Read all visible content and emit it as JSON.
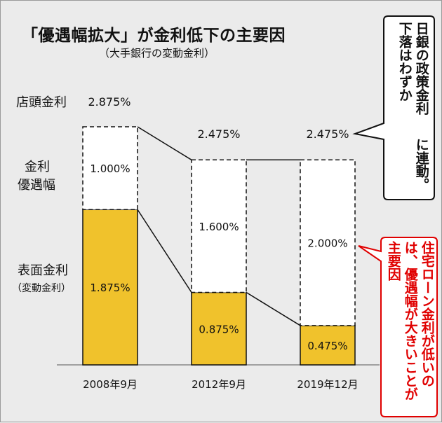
{
  "title": "「優遇幅拡大」が金利低下の主要因",
  "subtitle": "（大手銀行の変動金利）",
  "row_labels": {
    "storefront": "店頭金利",
    "discount_line1": "金利",
    "discount_line2": "優遇幅",
    "surface_line1": "表面金利",
    "surface_line2": "（変動金利）"
  },
  "callout_top": [
    "日銀の政策金利",
    "下落はわずか",
    "に連動。"
  ],
  "callout_right": [
    "住宅ローン金利が低いの",
    "は、優遇幅が大きいことが",
    "主要因"
  ],
  "colors": {
    "surface": "#f0c22c",
    "discount": "#ffffff",
    "callout_text_red": "#e00000",
    "background": "#ebebeb"
  },
  "chart_data": {
    "type": "bar",
    "stacked": true,
    "categories": [
      "2008年9月",
      "2012年9月",
      "2019年12月"
    ],
    "series": [
      {
        "name": "表面金利",
        "values": [
          1.875,
          0.875,
          0.475
        ],
        "labels": [
          "1.875%",
          "0.875%",
          "0.475%"
        ],
        "color": "#f0c22c"
      },
      {
        "name": "金利優遇幅",
        "values": [
          1.0,
          1.6,
          2.0
        ],
        "labels": [
          "1.000%",
          "1.600%",
          "2.000%"
        ],
        "color": "#ffffff",
        "dashed": true
      }
    ],
    "totals": [
      2.875,
      2.475,
      2.475
    ],
    "total_labels": [
      "2.875%",
      "2.475%",
      "2.475%"
    ],
    "ylim": [
      0,
      2.875
    ]
  }
}
